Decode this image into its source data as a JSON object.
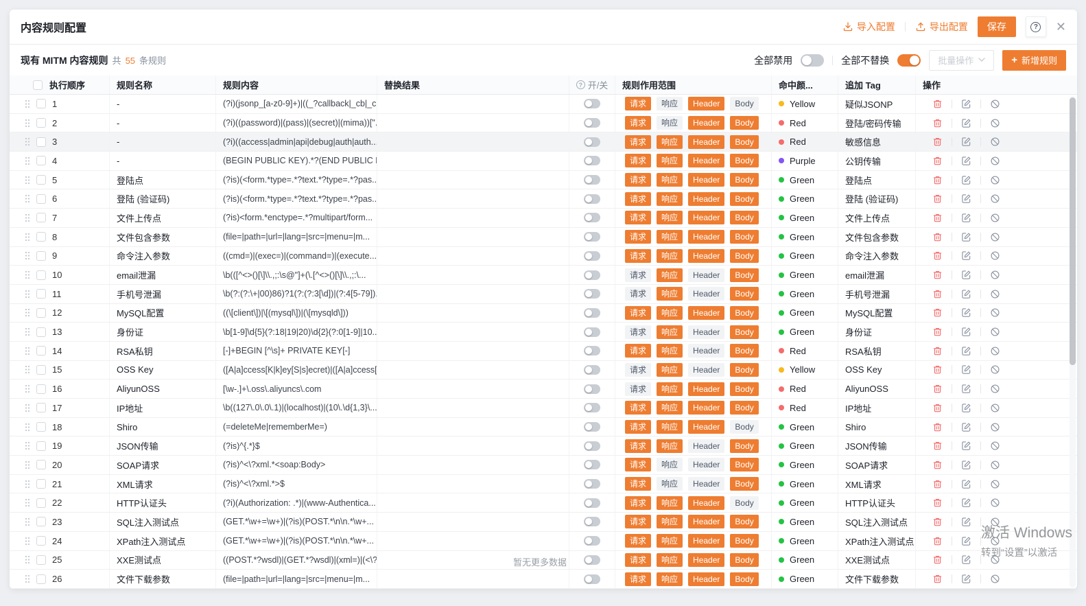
{
  "page": {
    "title": "内容规则配置",
    "header": {
      "import_label": "导入配置",
      "export_label": "导出配置",
      "save_label": "保存",
      "help_icon": "?",
      "close_icon": "✕"
    },
    "toolbar": {
      "rules_title": "现有 MITM 内容规则",
      "count_prefix": "共",
      "count": "55",
      "count_suffix": "条规则",
      "disable_all_label": "全部禁用",
      "disable_all_on": false,
      "no_replace_all_label": "全部不替换",
      "no_replace_all_on": true,
      "batch_label": "批量操作",
      "add_rule_label": "新增规则"
    },
    "table": {
      "headers": {
        "order": "执行顺序",
        "name": "规则名称",
        "content": "规则内容",
        "replace": "替换结果",
        "switch": "开/关",
        "scope": "规则作用范围",
        "color": "命中颜...",
        "tag": "追加 Tag",
        "actions": "操作"
      },
      "scope_labels": [
        "请求",
        "响应",
        "Header",
        "Body"
      ],
      "rows": [
        {
          "idx": 1,
          "name": "-",
          "content": "(?i)(jsonp_[a-z0-9]+)|((_?callback|_cb|_c...",
          "scope": [
            1,
            0,
            1,
            0
          ],
          "color": "Yellow",
          "tag": "疑似JSONP",
          "highlight": false
        },
        {
          "idx": 2,
          "name": "-",
          "content": "(?i)((password)|(pass)|(secret)|(mima))[\"...",
          "scope": [
            1,
            0,
            1,
            1
          ],
          "color": "Red",
          "tag": "登陆/密码传输",
          "highlight": false
        },
        {
          "idx": 3,
          "name": "-",
          "content": "(?i)((access|admin|api|debug|auth|auth...",
          "scope": [
            1,
            1,
            1,
            1
          ],
          "color": "Red",
          "tag": "敏感信息",
          "highlight": true
        },
        {
          "idx": 4,
          "name": "-",
          "content": "(BEGIN PUBLIC KEY).*?(END PUBLIC KEY)",
          "scope": [
            1,
            1,
            1,
            1
          ],
          "color": "Purple",
          "tag": "公钥传输",
          "highlight": false
        },
        {
          "idx": 5,
          "name": "登陆点",
          "content": "(?is)(<form.*type=.*?text.*?type=.*?pas...",
          "scope": [
            1,
            1,
            1,
            1
          ],
          "color": "Green",
          "tag": "登陆点",
          "highlight": false
        },
        {
          "idx": 6,
          "name": "登陆 (验证码)",
          "content": "(?is)(<form.*type=.*?text.*?type=.*?pas...",
          "scope": [
            1,
            1,
            1,
            1
          ],
          "color": "Green",
          "tag": "登陆 (验证码)",
          "highlight": false
        },
        {
          "idx": 7,
          "name": "文件上传点",
          "content": "(?is)<form.*enctype=.*?multipart/form...",
          "scope": [
            1,
            1,
            1,
            1
          ],
          "color": "Green",
          "tag": "文件上传点",
          "highlight": false
        },
        {
          "idx": 8,
          "name": "文件包含参数",
          "content": "(file=|path=|url=|lang=|src=|menu=|m...",
          "scope": [
            1,
            1,
            1,
            1
          ],
          "color": "Green",
          "tag": "文件包含参数",
          "highlight": false
        },
        {
          "idx": 9,
          "name": "命令注入参数",
          "content": "((cmd=)|(exec=)|(command=)|(execute...",
          "scope": [
            1,
            1,
            1,
            1
          ],
          "color": "Green",
          "tag": "命令注入参数",
          "highlight": false
        },
        {
          "idx": 10,
          "name": "email泄漏",
          "content": "\\b(([^<>()[\\]\\\\.,;:\\s@\"]+(\\.[^<>()[\\]\\\\.,;:\\...",
          "scope": [
            0,
            1,
            0,
            1
          ],
          "color": "Green",
          "tag": "email泄漏",
          "highlight": false
        },
        {
          "idx": 11,
          "name": "手机号泄漏",
          "content": "\\b(?:(?:\\+|00)86)?1(?:(?:3[\\d])|(?:4[5-79])...",
          "scope": [
            0,
            1,
            0,
            1
          ],
          "color": "Green",
          "tag": "手机号泄漏",
          "highlight": false
        },
        {
          "idx": 12,
          "name": "MySQL配置",
          "content": "((\\[client\\])|\\[(mysql\\])|(\\[mysqld\\]))",
          "scope": [
            1,
            1,
            1,
            1
          ],
          "color": "Green",
          "tag": "MySQL配置",
          "highlight": false
        },
        {
          "idx": 13,
          "name": "身份证",
          "content": "\\b[1-9]\\d{5}(?:18|19|20)\\d{2}(?:0[1-9]|10...",
          "scope": [
            0,
            1,
            0,
            1
          ],
          "color": "Green",
          "tag": "身份证",
          "highlight": false
        },
        {
          "idx": 14,
          "name": "RSA私钥",
          "content": "[-]+BEGIN [^\\s]+ PRIVATE KEY[-]",
          "scope": [
            1,
            1,
            0,
            1
          ],
          "color": "Red",
          "tag": "RSA私钥",
          "highlight": false
        },
        {
          "idx": 15,
          "name": "OSS Key",
          "content": "([A|a]ccess[K|k]ey[S|s]ecret)|([A|a]ccess[...",
          "scope": [
            0,
            1,
            0,
            1
          ],
          "color": "Yellow",
          "tag": "OSS Key",
          "highlight": false
        },
        {
          "idx": 16,
          "name": "AliyunOSS",
          "content": "[\\w-.]+\\.oss\\.aliyuncs\\.com",
          "scope": [
            0,
            1,
            1,
            1
          ],
          "color": "Red",
          "tag": "AliyunOSS",
          "highlight": false
        },
        {
          "idx": 17,
          "name": "IP地址",
          "content": "\\b((127\\.0\\.0\\.1)|(localhost)|(10\\.\\d{1,3}\\...",
          "scope": [
            1,
            1,
            1,
            1
          ],
          "color": "Red",
          "tag": "IP地址",
          "highlight": false
        },
        {
          "idx": 18,
          "name": "Shiro",
          "content": "(=deleteMe|rememberMe=)",
          "scope": [
            1,
            1,
            1,
            0
          ],
          "color": "Green",
          "tag": "Shiro",
          "highlight": false
        },
        {
          "idx": 19,
          "name": "JSON传输",
          "content": "(?is)^{.*}$",
          "scope": [
            1,
            1,
            0,
            1
          ],
          "color": "Green",
          "tag": "JSON传输",
          "highlight": false
        },
        {
          "idx": 20,
          "name": "SOAP请求",
          "content": "(?is)^<\\?xml.*<soap:Body>",
          "scope": [
            1,
            0,
            0,
            1
          ],
          "color": "Green",
          "tag": "SOAP请求",
          "highlight": false
        },
        {
          "idx": 21,
          "name": "XML请求",
          "content": "(?is)^<\\?xml.*>$",
          "scope": [
            1,
            0,
            0,
            1
          ],
          "color": "Green",
          "tag": "XML请求",
          "highlight": false
        },
        {
          "idx": 22,
          "name": "HTTP认证头",
          "content": "(?i)(Authorization: .*)|(www-Authentica...",
          "scope": [
            1,
            1,
            1,
            0
          ],
          "color": "Green",
          "tag": "HTTP认证头",
          "highlight": false
        },
        {
          "idx": 23,
          "name": "SQL注入测试点",
          "content": "(GET.*\\w+=\\w+)|(?is)(POST.*\\n\\n.*\\w+...",
          "scope": [
            1,
            1,
            1,
            1
          ],
          "color": "Green",
          "tag": "SQL注入测试点",
          "highlight": false
        },
        {
          "idx": 24,
          "name": "XPath注入测试点",
          "content": "(GET.*\\w+=\\w+)|(?is)(POST.*\\n\\n.*\\w+...",
          "scope": [
            1,
            1,
            1,
            1
          ],
          "color": "Green",
          "tag": "XPath注入测试点",
          "highlight": false
        },
        {
          "idx": 25,
          "name": "XXE测试点",
          "content": "((POST.*?wsdl)|(GET.*?wsdl)|(xml=)|(<\\?...",
          "scope": [
            1,
            1,
            1,
            1
          ],
          "color": "Green",
          "tag": "XXE测试点",
          "highlight": false
        },
        {
          "idx": 26,
          "name": "文件下载参数",
          "content": "(file=|path=|url=|lang=|src=|menu=|m...",
          "scope": [
            1,
            1,
            1,
            1
          ],
          "color": "Green",
          "tag": "文件下载参数",
          "highlight": false
        }
      ]
    },
    "footer": {
      "no_more_text": "暂无更多数据"
    },
    "watermark": {
      "line1": "激活 Windows",
      "line2": "转到“设置”以激活"
    }
  },
  "colors": {
    "accent": "#ee7d31",
    "dot": {
      "Yellow": "#f7ba1e",
      "Red": "#f56c6c",
      "Purple": "#8255f5",
      "Green": "#23c343"
    }
  }
}
